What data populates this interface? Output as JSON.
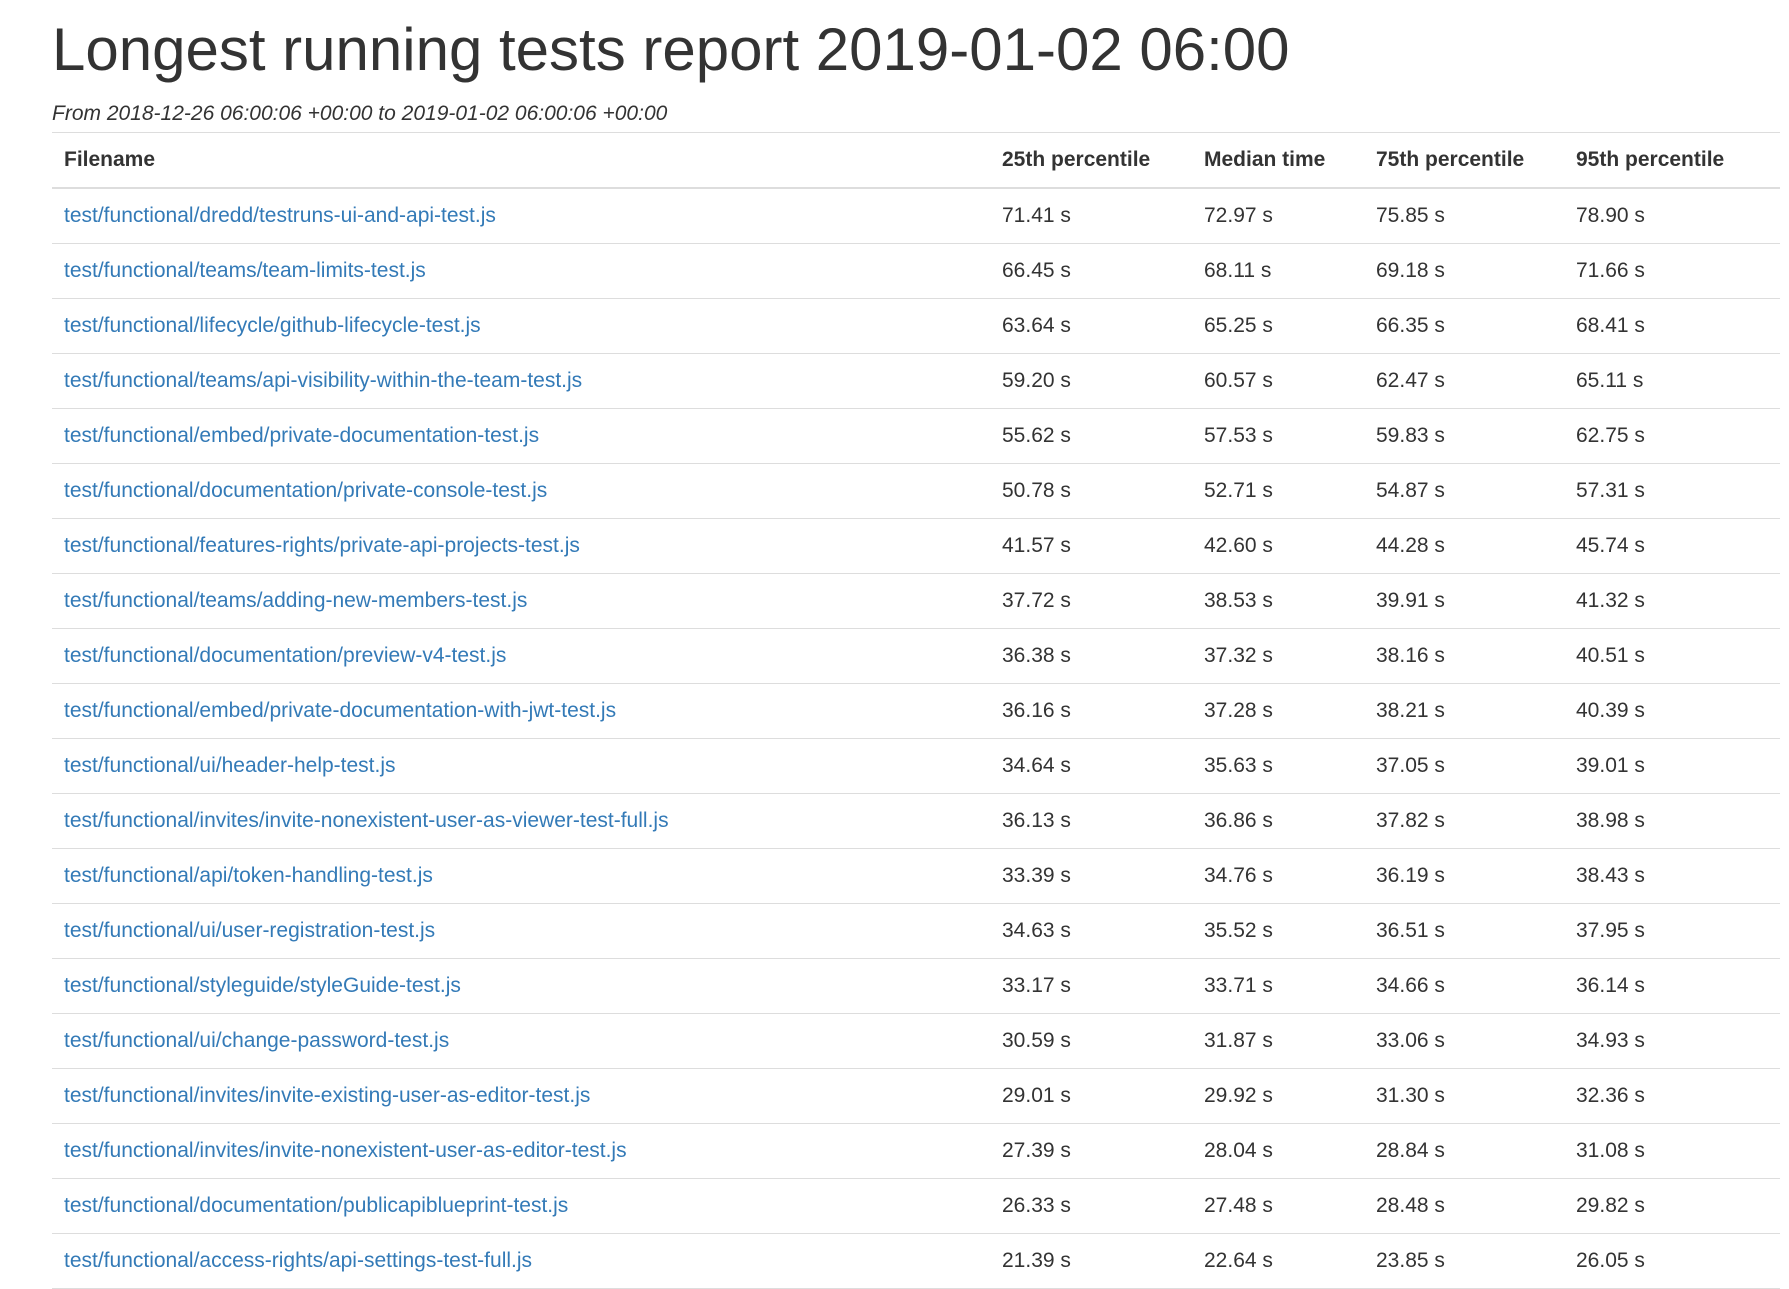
{
  "report": {
    "title": "Longest running tests report 2019-01-02 06:00",
    "subtitle": "From 2018-12-26 06:00:06 +00:00 to 2019-01-02 06:00:06 +00:00"
  },
  "colors": {
    "link": "#337ab7",
    "text": "#333333",
    "border": "#dddddd"
  },
  "table": {
    "headers": {
      "filename": "Filename",
      "p25": "25th percentile",
      "median": "Median time",
      "p75": "75th percentile",
      "p95": "95th percentile"
    },
    "rows": [
      {
        "filename": "test/functional/dredd/testruns-ui-and-api-test.js",
        "p25": "71.41 s",
        "median": "72.97 s",
        "p75": "75.85 s",
        "p95": "78.90 s"
      },
      {
        "filename": "test/functional/teams/team-limits-test.js",
        "p25": "66.45 s",
        "median": "68.11 s",
        "p75": "69.18 s",
        "p95": "71.66 s"
      },
      {
        "filename": "test/functional/lifecycle/github-lifecycle-test.js",
        "p25": "63.64 s",
        "median": "65.25 s",
        "p75": "66.35 s",
        "p95": "68.41 s"
      },
      {
        "filename": "test/functional/teams/api-visibility-within-the-team-test.js",
        "p25": "59.20 s",
        "median": "60.57 s",
        "p75": "62.47 s",
        "p95": "65.11 s"
      },
      {
        "filename": "test/functional/embed/private-documentation-test.js",
        "p25": "55.62 s",
        "median": "57.53 s",
        "p75": "59.83 s",
        "p95": "62.75 s"
      },
      {
        "filename": "test/functional/documentation/private-console-test.js",
        "p25": "50.78 s",
        "median": "52.71 s",
        "p75": "54.87 s",
        "p95": "57.31 s"
      },
      {
        "filename": "test/functional/features-rights/private-api-projects-test.js",
        "p25": "41.57 s",
        "median": "42.60 s",
        "p75": "44.28 s",
        "p95": "45.74 s"
      },
      {
        "filename": "test/functional/teams/adding-new-members-test.js",
        "p25": "37.72 s",
        "median": "38.53 s",
        "p75": "39.91 s",
        "p95": "41.32 s"
      },
      {
        "filename": "test/functional/documentation/preview-v4-test.js",
        "p25": "36.38 s",
        "median": "37.32 s",
        "p75": "38.16 s",
        "p95": "40.51 s"
      },
      {
        "filename": "test/functional/embed/private-documentation-with-jwt-test.js",
        "p25": "36.16 s",
        "median": "37.28 s",
        "p75": "38.21 s",
        "p95": "40.39 s"
      },
      {
        "filename": "test/functional/ui/header-help-test.js",
        "p25": "34.64 s",
        "median": "35.63 s",
        "p75": "37.05 s",
        "p95": "39.01 s"
      },
      {
        "filename": "test/functional/invites/invite-nonexistent-user-as-viewer-test-full.js",
        "p25": "36.13 s",
        "median": "36.86 s",
        "p75": "37.82 s",
        "p95": "38.98 s"
      },
      {
        "filename": "test/functional/api/token-handling-test.js",
        "p25": "33.39 s",
        "median": "34.76 s",
        "p75": "36.19 s",
        "p95": "38.43 s"
      },
      {
        "filename": "test/functional/ui/user-registration-test.js",
        "p25": "34.63 s",
        "median": "35.52 s",
        "p75": "36.51 s",
        "p95": "37.95 s"
      },
      {
        "filename": "test/functional/styleguide/styleGuide-test.js",
        "p25": "33.17 s",
        "median": "33.71 s",
        "p75": "34.66 s",
        "p95": "36.14 s"
      },
      {
        "filename": "test/functional/ui/change-password-test.js",
        "p25": "30.59 s",
        "median": "31.87 s",
        "p75": "33.06 s",
        "p95": "34.93 s"
      },
      {
        "filename": "test/functional/invites/invite-existing-user-as-editor-test.js",
        "p25": "29.01 s",
        "median": "29.92 s",
        "p75": "31.30 s",
        "p95": "32.36 s"
      },
      {
        "filename": "test/functional/invites/invite-nonexistent-user-as-editor-test.js",
        "p25": "27.39 s",
        "median": "28.04 s",
        "p75": "28.84 s",
        "p95": "31.08 s"
      },
      {
        "filename": "test/functional/documentation/publicapiblueprint-test.js",
        "p25": "26.33 s",
        "median": "27.48 s",
        "p75": "28.48 s",
        "p95": "29.82 s"
      },
      {
        "filename": "test/functional/access-rights/api-settings-test-full.js",
        "p25": "21.39 s",
        "median": "22.64 s",
        "p75": "23.85 s",
        "p95": "26.05 s"
      }
    ]
  }
}
